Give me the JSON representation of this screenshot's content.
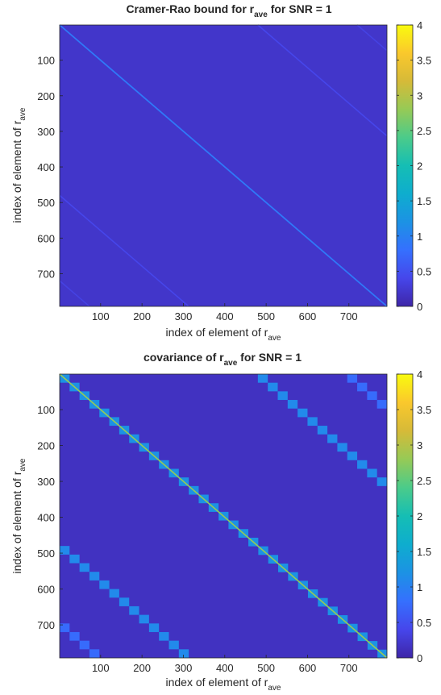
{
  "chart_data": [
    {
      "type": "heatmap",
      "title_prefix": "Cramer-Rao bound for r",
      "title_sub": "ave",
      "title_suffix": " for SNR = 1",
      "xlabel_prefix": "index of element of r",
      "xlabel_sub": "ave",
      "ylabel_prefix": "index of element of r",
      "ylabel_sub": "ave",
      "xlim": [
        1,
        792
      ],
      "ylim": [
        1,
        792
      ],
      "x_ticks": [
        100,
        200,
        300,
        400,
        500,
        600,
        700
      ],
      "y_ticks": [
        100,
        200,
        300,
        400,
        500,
        600,
        700
      ],
      "clim": [
        0,
        4
      ],
      "colorbar_ticks": [
        "0",
        "0.5",
        "1",
        "1.5",
        "2",
        "2.5",
        "3",
        "3.5",
        "4"
      ],
      "colormap": "parula",
      "background_value": 0.2,
      "diagonal_value": 0.9,
      "off_diagonal_bands": [
        {
          "row_start": 480,
          "row_end": 792,
          "col_start": 1,
          "col_end": 312,
          "value": 0.4
        },
        {
          "row_start": 1,
          "row_end": 312,
          "col_start": 480,
          "col_end": 792,
          "value": 0.4
        },
        {
          "row_start": 720,
          "row_end": 792,
          "col_start": 1,
          "col_end": 72,
          "value": 0.35
        },
        {
          "row_start": 1,
          "row_end": 72,
          "col_start": 720,
          "col_end": 792,
          "value": 0.35
        }
      ]
    },
    {
      "type": "heatmap",
      "title_prefix": "covariance of r",
      "title_sub": "ave",
      "title_suffix": " for SNR = 1",
      "xlabel_prefix": "index of element of r",
      "xlabel_sub": "ave",
      "ylabel_prefix": "index of element of r",
      "ylabel_sub": "ave",
      "xlim": [
        1,
        792
      ],
      "ylim": [
        1,
        792
      ],
      "x_ticks": [
        100,
        200,
        300,
        400,
        500,
        600,
        700
      ],
      "y_ticks": [
        100,
        200,
        300,
        400,
        500,
        600,
        700
      ],
      "clim": [
        0,
        4
      ],
      "colorbar_ticks": [
        "0",
        "0.5",
        "1",
        "1.5",
        "2",
        "2.5",
        "3",
        "3.5",
        "4"
      ],
      "colormap": "parula",
      "background_value": 0.15,
      "block_size": 24,
      "diagonal_block_value": 1.2,
      "diagonal_line_value": 2.8,
      "staircases": [
        {
          "row_start": 1,
          "col_start": 480,
          "n_blocks": 8,
          "block_size": 24,
          "step": 24,
          "value": 1.1
        },
        {
          "row_start": 480,
          "col_start": 1,
          "n_blocks": 8,
          "block_size": 24,
          "step": 24,
          "value": 1.1
        },
        {
          "row_start": 1,
          "col_start": 696,
          "n_blocks": 3,
          "block_size": 24,
          "step": 24,
          "value": 0.75
        },
        {
          "row_start": 696,
          "col_start": 1,
          "n_blocks": 3,
          "block_size": 24,
          "step": 24,
          "value": 0.75
        }
      ]
    }
  ]
}
